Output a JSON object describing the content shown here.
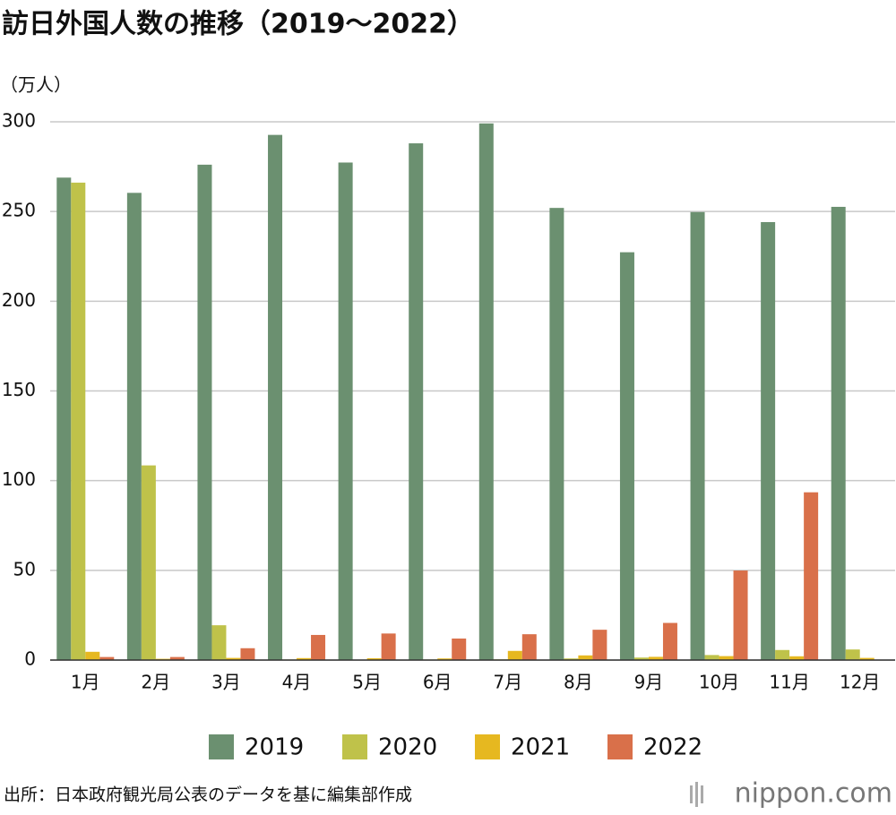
{
  "chart_data": {
    "type": "bar",
    "title": "訪日外国人数の推移（2019〜2022）",
    "y_label": "（万人）",
    "categories": [
      "1月",
      "2月",
      "3月",
      "4月",
      "5月",
      "6月",
      "7月",
      "8月",
      "9月",
      "10月",
      "11月",
      "12月"
    ],
    "series": [
      {
        "name": "2019",
        "color": "#6b9070",
        "values": [
          268.9,
          260.4,
          276.1,
          292.7,
          277.3,
          288.0,
          299.1,
          252.0,
          227.3,
          249.7,
          244.1,
          252.6
        ]
      },
      {
        "name": "2020",
        "color": "#bfc24a",
        "values": [
          266.1,
          108.5,
          19.4,
          0.3,
          0.2,
          0.3,
          0.4,
          0.9,
          1.4,
          2.8,
          5.6,
          5.9
        ]
      },
      {
        "name": "2021",
        "color": "#e6b820",
        "values": [
          4.6,
          0.7,
          1.2,
          1.1,
          1.0,
          0.9,
          5.1,
          2.6,
          1.8,
          2.2,
          2.1,
          1.2
        ]
      },
      {
        "name": "2022",
        "color": "#d9704a",
        "values": [
          1.7,
          1.7,
          6.6,
          14.0,
          14.8,
          12.0,
          14.4,
          16.9,
          20.7,
          49.9,
          93.5,
          null
        ]
      }
    ],
    "ylim": [
      0,
      300
    ],
    "yticks": [
      0,
      50,
      100,
      150,
      200,
      250,
      300
    ],
    "grid": true,
    "legend": "bottom",
    "source": "出所：日本政府観光局公表のデータを基に編集部作成",
    "brand": "nippon.com"
  }
}
